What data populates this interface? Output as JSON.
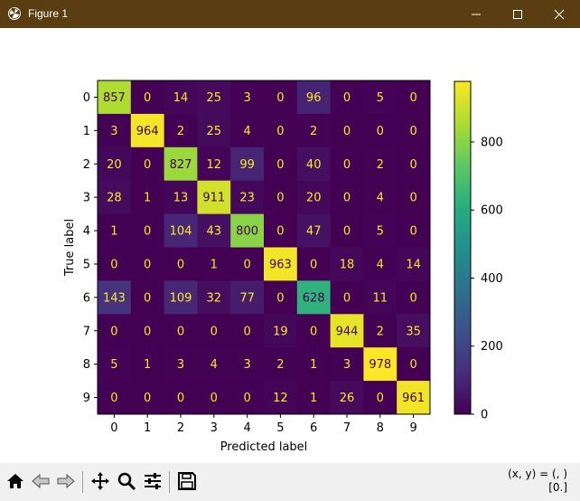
{
  "window": {
    "title": "Figure 1",
    "titlebar_color": "#5a3d10"
  },
  "toolbar": {
    "tools": [
      "home-icon",
      "back-arrow-icon",
      "forward-arrow-icon",
      "pan-icon",
      "zoom-icon",
      "configure-subplots-icon",
      "save-icon"
    ],
    "coords_line1": "(x, y) = (, )",
    "coords_line2": "[0.]"
  },
  "chart_data": {
    "type": "heatmap",
    "xlabel": "Predicted label",
    "ylabel": "True label",
    "x_ticks": [
      "0",
      "1",
      "2",
      "3",
      "4",
      "5",
      "6",
      "7",
      "8",
      "9"
    ],
    "y_ticks": [
      "0",
      "1",
      "2",
      "3",
      "4",
      "5",
      "6",
      "7",
      "8",
      "9"
    ],
    "colormap": "viridis",
    "colorbar": {
      "range": [
        0,
        978
      ],
      "ticks": [
        0,
        200,
        400,
        600,
        800
      ]
    },
    "matrix": [
      [
        857,
        0,
        14,
        25,
        3,
        0,
        96,
        0,
        5,
        0
      ],
      [
        3,
        964,
        2,
        25,
        4,
        0,
        2,
        0,
        0,
        0
      ],
      [
        20,
        0,
        827,
        12,
        99,
        0,
        40,
        0,
        2,
        0
      ],
      [
        28,
        1,
        13,
        911,
        23,
        0,
        20,
        0,
        4,
        0
      ],
      [
        1,
        0,
        104,
        43,
        800,
        0,
        47,
        0,
        5,
        0
      ],
      [
        0,
        0,
        0,
        1,
        0,
        963,
        0,
        18,
        4,
        14
      ],
      [
        143,
        0,
        109,
        32,
        77,
        0,
        628,
        0,
        11,
        0
      ],
      [
        0,
        0,
        0,
        0,
        0,
        19,
        0,
        944,
        2,
        35
      ],
      [
        5,
        1,
        3,
        4,
        3,
        2,
        1,
        3,
        978,
        0
      ],
      [
        0,
        0,
        0,
        0,
        0,
        12,
        1,
        26,
        0,
        961
      ]
    ]
  }
}
